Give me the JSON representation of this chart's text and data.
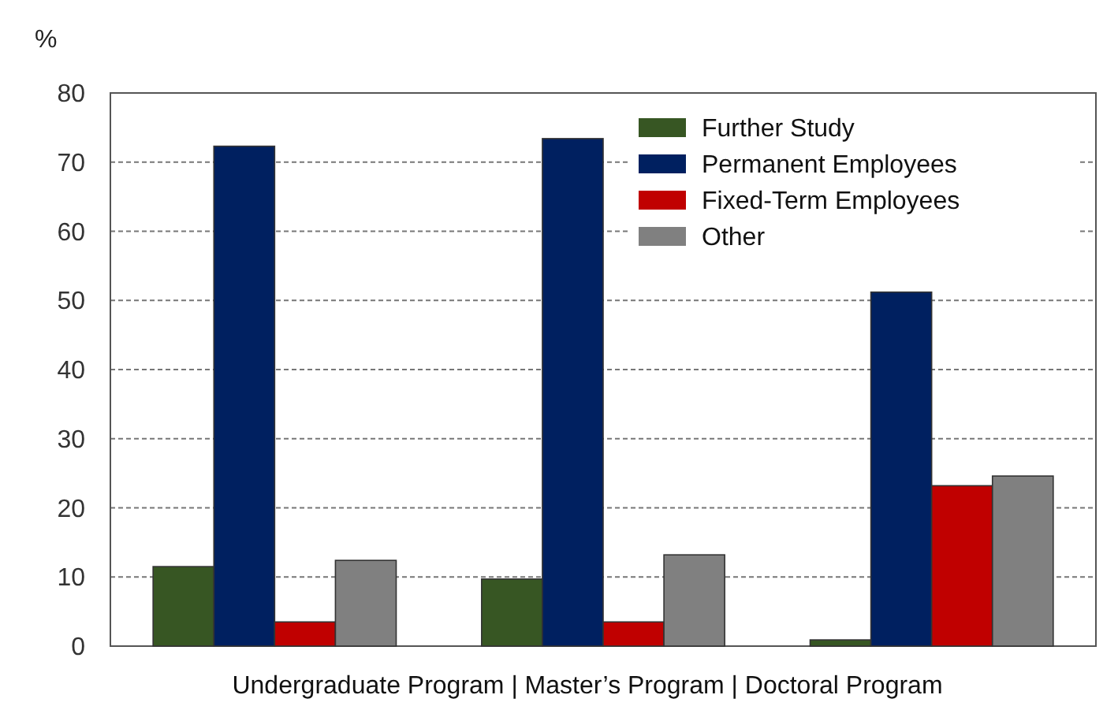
{
  "chart_data": {
    "type": "bar",
    "ylabel": "%",
    "xlabel": "Undergraduate Program | Master’s Program | Doctoral Program",
    "categories": [
      null,
      null,
      null
    ],
    "series": [
      {
        "name": "Further Study",
        "color": "#375623",
        "values": [
          11.5,
          9.7,
          0.9
        ]
      },
      {
        "name": "Permanent Employees",
        "color": "#002060",
        "values": [
          72.3,
          73.4,
          51.2
        ]
      },
      {
        "name": "Fixed-Term Employees",
        "color": "#c00000",
        "values": [
          3.5,
          3.5,
          23.2
        ]
      },
      {
        "name": "Other",
        "color": "#808080",
        "values": [
          12.4,
          13.2,
          24.6
        ]
      }
    ],
    "ylim": [
      0,
      80
    ],
    "yticks": [
      0,
      10,
      20,
      30,
      40,
      50,
      60,
      70,
      80
    ],
    "grid": "y",
    "legend": "top right"
  }
}
